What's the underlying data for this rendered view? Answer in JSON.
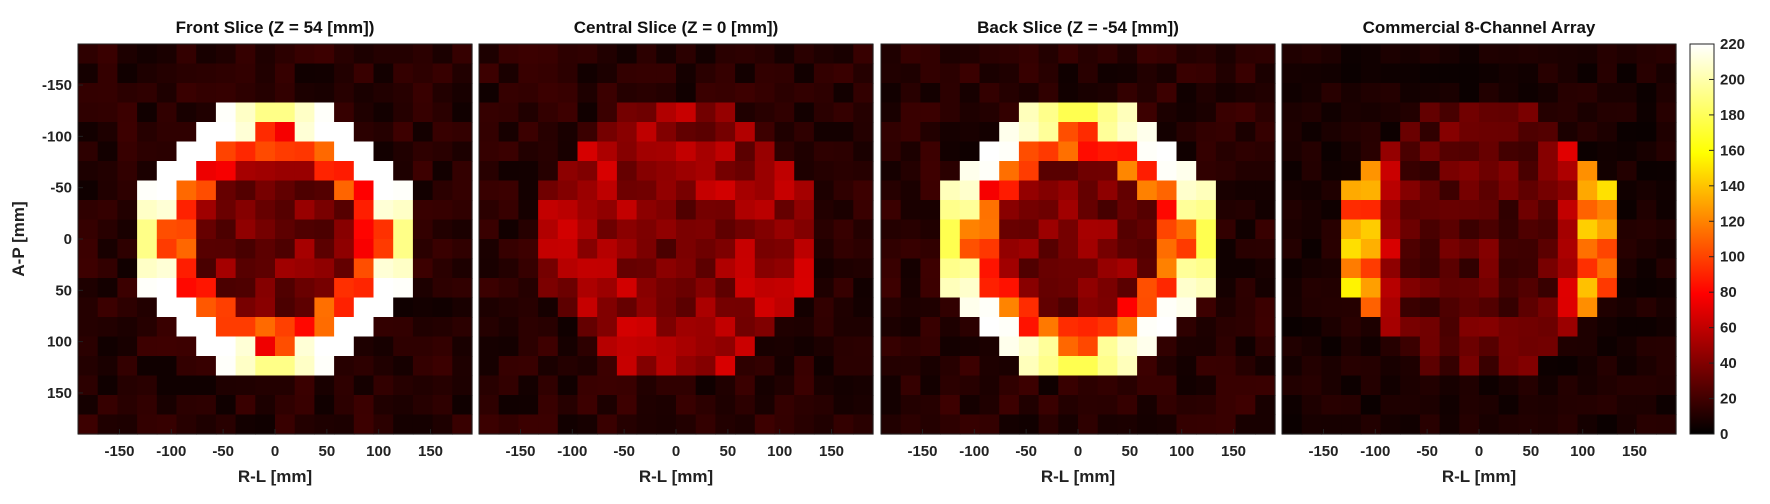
{
  "colors": {
    "colormap": "hot",
    "colormap_stops": [
      "#000000",
      "#8b0000",
      "#ff0000",
      "#ff8c00",
      "#ffff00",
      "#ffffff"
    ],
    "axis": "#222222",
    "background": "#ffffff"
  },
  "chart_data": [
    {
      "type": "heatmap",
      "title": "Front Slice (Z = 54 [mm])",
      "xlabel": "R-L [mm]",
      "ylabel": "A-P [mm]",
      "xlim": [
        -190,
        190
      ],
      "ylim": [
        -190,
        190
      ],
      "y_reversed": true,
      "xticks": [
        "-150",
        "-100",
        "-50",
        "0",
        "50",
        "100",
        "150"
      ],
      "yticks": [
        "-150",
        "-100",
        "-50",
        "0",
        "50",
        "100",
        "150"
      ],
      "grid_cells": 20,
      "phantom_radius": 135,
      "ring_value": 215,
      "inner_value": 85,
      "center_value": 35,
      "background_value": 12,
      "pattern": "ring"
    },
    {
      "type": "heatmap",
      "title": "Central Slice (Z = 0 [mm])",
      "xlabel": "R-L [mm]",
      "ylabel": "",
      "xlim": [
        -190,
        190
      ],
      "ylim": [
        -190,
        190
      ],
      "y_reversed": true,
      "xticks": [
        "-150",
        "-100",
        "-50",
        "0",
        "50",
        "100",
        "150"
      ],
      "yticks": [],
      "grid_cells": 20,
      "phantom_radius": 135,
      "ring_value": 60,
      "inner_value": 50,
      "center_value": 35,
      "background_value": 12,
      "pattern": "uniform"
    },
    {
      "type": "heatmap",
      "title": "Back Slice (Z = -54 [mm])",
      "xlabel": "R-L [mm]",
      "ylabel": "",
      "xlim": [
        -190,
        190
      ],
      "ylim": [
        -190,
        190
      ],
      "y_reversed": true,
      "xticks": [
        "-150",
        "-100",
        "-50",
        "0",
        "50",
        "100",
        "150"
      ],
      "yticks": [],
      "grid_cells": 20,
      "phantom_radius": 135,
      "ring_value": 200,
      "inner_value": 90,
      "center_value": 35,
      "background_value": 12,
      "pattern": "ring"
    },
    {
      "type": "heatmap",
      "title": "Commercial 8-Channel Array",
      "xlabel": "R-L [mm]",
      "ylabel": "",
      "xlim": [
        -190,
        190
      ],
      "ylim": [
        -190,
        190
      ],
      "y_reversed": true,
      "xticks": [
        "-150",
        "-100",
        "-50",
        "0",
        "50",
        "100",
        "150"
      ],
      "yticks": [],
      "grid_cells": 20,
      "phantom_radius": 135,
      "ring_value": 130,
      "inner_value": 30,
      "center_value": 25,
      "background_value": 8,
      "pattern": "lateral"
    }
  ],
  "colorbar": {
    "min": 0,
    "max": 220,
    "ticks": [
      "0",
      "20",
      "40",
      "60",
      "80",
      "100",
      "120",
      "140",
      "160",
      "180",
      "200",
      "220"
    ]
  }
}
